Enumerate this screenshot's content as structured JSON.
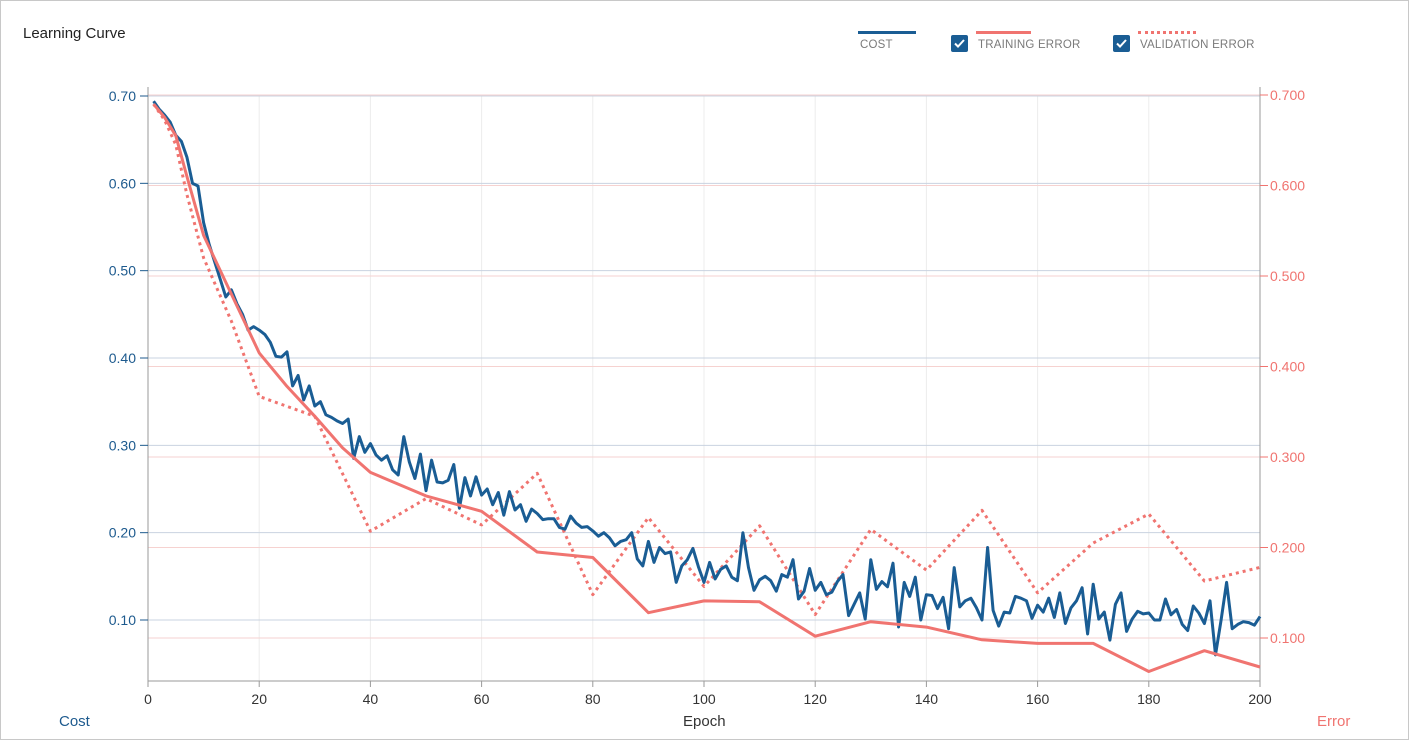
{
  "chart_data": {
    "type": "line",
    "title": "Learning Curve",
    "xlabel": "Epoch",
    "ylabel_left": "Cost",
    "ylabel_right": "Error",
    "xlim": [
      0,
      200
    ],
    "ylim_left": [
      0.03,
      0.7
    ],
    "ylim_right": [
      0.03,
      0.7
    ],
    "x_ticks": [
      "0",
      "20",
      "40",
      "60",
      "80",
      "100",
      "120",
      "140",
      "160",
      "180",
      "200"
    ],
    "y_left_ticks": [
      "0.10",
      "0.20",
      "0.30",
      "0.40",
      "0.50",
      "0.60",
      "0.70"
    ],
    "y_right_ticks": [
      "0.100",
      "0.200",
      "0.300",
      "0.400",
      "0.500",
      "0.600",
      "0.700"
    ],
    "grid": true,
    "legend": {
      "position": "top-right",
      "items": [
        {
          "name": "COST",
          "checkbox": false,
          "checked": false
        },
        {
          "name": "TRAINING ERROR",
          "checkbox": true,
          "checked": true
        },
        {
          "name": "VALIDATION ERROR",
          "checkbox": true,
          "checked": true
        }
      ]
    },
    "colors": {
      "cost": "#1a5d94",
      "training": "#f07470",
      "validation": "#f07470"
    },
    "series": [
      {
        "name": "COST",
        "axis": "left",
        "style": "solid",
        "x_start": 1,
        "x_step": 1,
        "values": [
          0.694,
          0.685,
          0.678,
          0.67,
          0.655,
          0.648,
          0.63,
          0.6,
          0.597,
          0.555,
          0.53,
          0.51,
          0.49,
          0.47,
          0.478,
          0.462,
          0.45,
          0.432,
          0.436,
          0.432,
          0.427,
          0.418,
          0.402,
          0.401,
          0.407,
          0.368,
          0.38,
          0.352,
          0.368,
          0.345,
          0.35,
          0.335,
          0.332,
          0.328,
          0.325,
          0.33,
          0.285,
          0.31,
          0.292,
          0.302,
          0.289,
          0.283,
          0.288,
          0.272,
          0.266,
          0.31,
          0.281,
          0.262,
          0.29,
          0.248,
          0.283,
          0.258,
          0.257,
          0.26,
          0.278,
          0.228,
          0.263,
          0.242,
          0.264,
          0.243,
          0.25,
          0.232,
          0.246,
          0.22,
          0.247,
          0.226,
          0.232,
          0.213,
          0.227,
          0.222,
          0.215,
          0.216,
          0.216,
          0.206,
          0.204,
          0.219,
          0.211,
          0.206,
          0.207,
          0.202,
          0.196,
          0.2,
          0.194,
          0.185,
          0.19,
          0.192,
          0.2,
          0.17,
          0.162,
          0.19,
          0.166,
          0.183,
          0.176,
          0.178,
          0.143,
          0.162,
          0.169,
          0.182,
          0.161,
          0.143,
          0.166,
          0.147,
          0.158,
          0.162,
          0.149,
          0.145,
          0.2,
          0.16,
          0.134,
          0.146,
          0.15,
          0.145,
          0.133,
          0.152,
          0.149,
          0.169,
          0.124,
          0.133,
          0.159,
          0.134,
          0.143,
          0.129,
          0.132,
          0.144,
          0.152,
          0.105,
          0.118,
          0.131,
          0.101,
          0.169,
          0.135,
          0.144,
          0.138,
          0.165,
          0.092,
          0.143,
          0.127,
          0.149,
          0.1,
          0.129,
          0.128,
          0.113,
          0.126,
          0.09,
          0.16,
          0.115,
          0.122,
          0.125,
          0.114,
          0.1,
          0.183,
          0.111,
          0.093,
          0.109,
          0.108,
          0.127,
          0.125,
          0.122,
          0.102,
          0.117,
          0.109,
          0.125,
          0.103,
          0.131,
          0.096,
          0.114,
          0.122,
          0.137,
          0.084,
          0.141,
          0.101,
          0.109,
          0.077,
          0.118,
          0.131,
          0.087,
          0.101,
          0.11,
          0.107,
          0.108,
          0.1,
          0.1,
          0.124,
          0.106,
          0.112,
          0.095,
          0.088,
          0.116,
          0.108,
          0.096,
          0.122,
          0.06,
          0.1,
          0.143,
          0.09,
          0.095,
          0.098,
          0.097,
          0.094,
          0.104
        ]
      },
      {
        "name": "TRAINING ERROR",
        "axis": "right",
        "style": "solid",
        "x": [
          1,
          3,
          5,
          7,
          10,
          15,
          20,
          25,
          30,
          35,
          40,
          50,
          60,
          70,
          80,
          90,
          100,
          110,
          120,
          130,
          140,
          150,
          160,
          170,
          180,
          190,
          200
        ],
        "values": [
          0.69,
          0.675,
          0.655,
          0.61,
          0.545,
          0.48,
          0.415,
          0.378,
          0.345,
          0.31,
          0.283,
          0.257,
          0.24,
          0.195,
          0.189,
          0.128,
          0.141,
          0.14,
          0.102,
          0.118,
          0.112,
          0.098,
          0.094,
          0.094,
          0.063,
          0.086,
          0.068
        ]
      },
      {
        "name": "VALIDATION ERROR",
        "axis": "right",
        "style": "dotted",
        "x": [
          1,
          3,
          5,
          7,
          10,
          15,
          20,
          30,
          40,
          50,
          60,
          70,
          80,
          90,
          100,
          110,
          120,
          130,
          140,
          150,
          160,
          170,
          180,
          190,
          200
        ],
        "values": [
          0.69,
          0.672,
          0.645,
          0.59,
          0.52,
          0.45,
          0.367,
          0.345,
          0.218,
          0.254,
          0.225,
          0.282,
          0.148,
          0.233,
          0.157,
          0.224,
          0.126,
          0.22,
          0.175,
          0.241,
          0.15,
          0.205,
          0.237,
          0.163,
          0.178
        ]
      }
    ]
  }
}
